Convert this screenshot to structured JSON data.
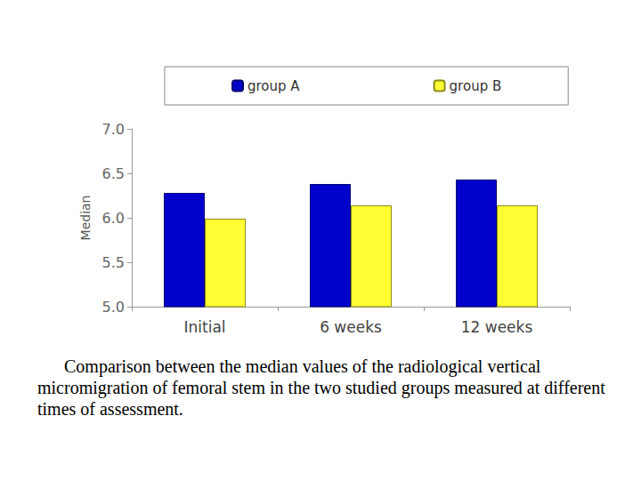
{
  "chart_data": {
    "type": "bar",
    "caption": "Comparison between the median values of the radiological vertical micromigration of femoral stem in the two studied groups measured at different times of assessment.",
    "y_label": "Median",
    "categories": [
      "Initial",
      "6 weeks",
      "12 weeks"
    ],
    "series": [
      {
        "name": "group A",
        "color": "#0000cc",
        "values": [
          6.28,
          6.38,
          6.43
        ]
      },
      {
        "name": "group B",
        "color": "#ffff33",
        "values": [
          5.99,
          6.14,
          6.14
        ]
      }
    ],
    "ylim": [
      5,
      7
    ],
    "yticks": [
      {
        "value": 5,
        "label": "5.0"
      },
      {
        "value": 5.5,
        "label": "5.5"
      },
      {
        "value": 6,
        "label": "6.0"
      },
      {
        "value": 6.5,
        "label": "6.5"
      },
      {
        "value": 7,
        "label": "7.0"
      }
    ],
    "grid": false,
    "legend": "top"
  }
}
